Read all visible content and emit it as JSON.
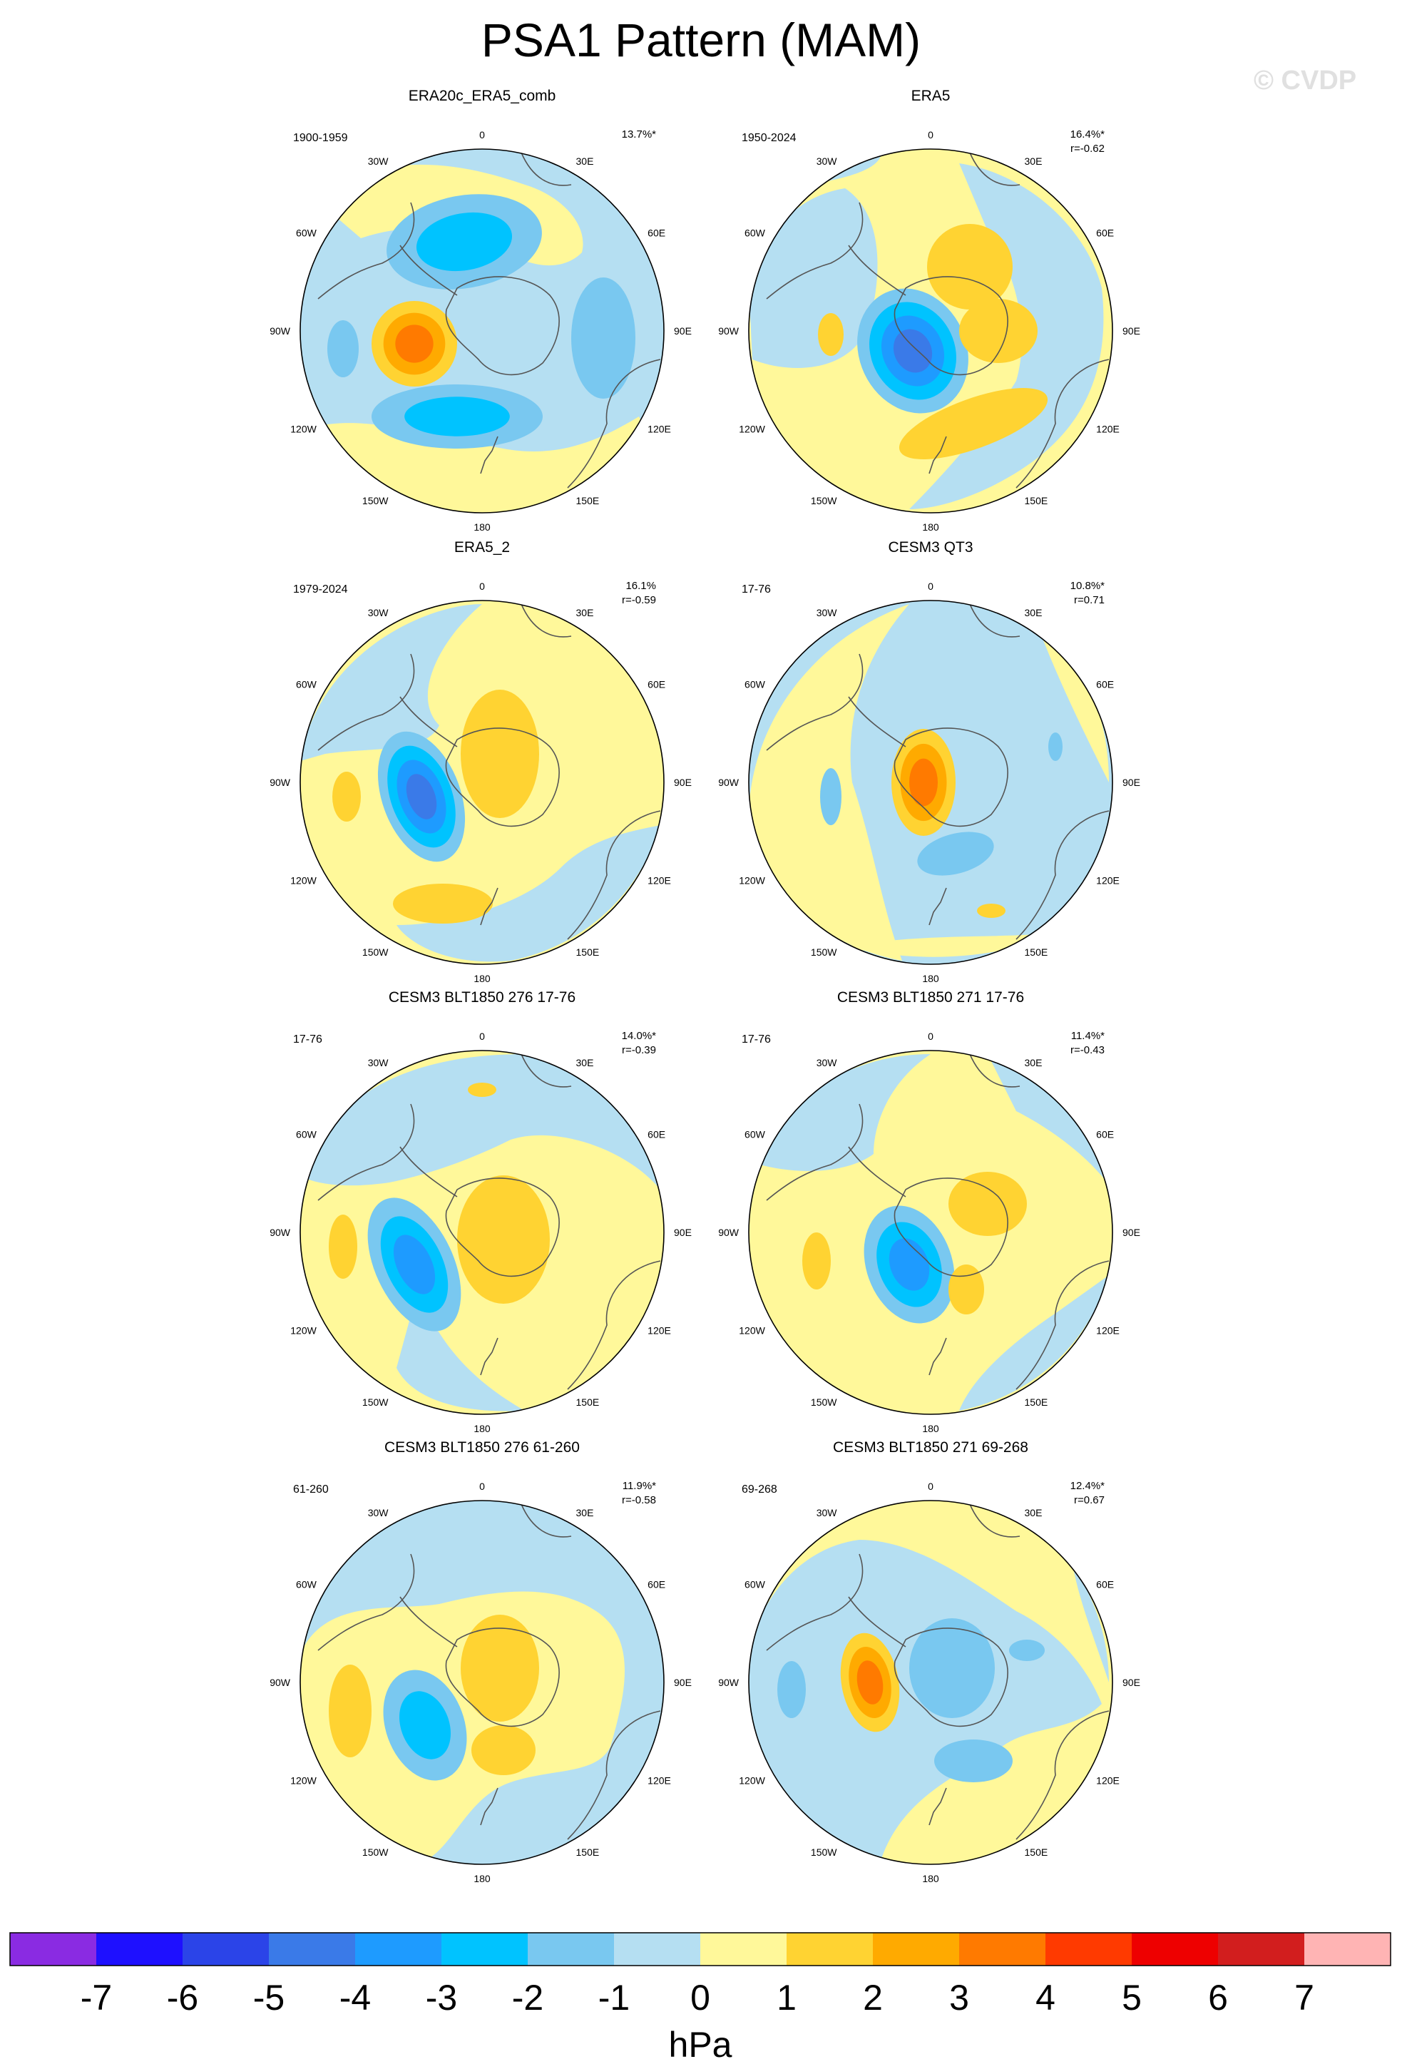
{
  "title": "PSA1 Pattern (MAM)",
  "watermark": "© CVDP",
  "units": "hPa",
  "colorbar": {
    "ticks": [
      "-7",
      "-6",
      "-5",
      "-4",
      "-3",
      "-2",
      "-1",
      "0",
      "1",
      "2",
      "3",
      "4",
      "5",
      "6",
      "7"
    ],
    "colors": [
      "#8a2be2",
      "#1e10ff",
      "#2b44e8",
      "#3a7ae8",
      "#1e9bff",
      "#00c3ff",
      "#79c8f0",
      "#b5dff2",
      "#fff89a",
      "#ffd332",
      "#ffaa00",
      "#ff7a00",
      "#ff3a00",
      "#ee0000",
      "#d21e1e",
      "#ffb4b4"
    ]
  },
  "lon_labels": [
    "0",
    "30E",
    "60E",
    "90E",
    "120E",
    "150E",
    "180",
    "150W",
    "120W",
    "90W",
    "60W",
    "30W"
  ],
  "chart_data": [
    {
      "type": "map",
      "title": "ERA20c_ERA5_comb",
      "period": "1900-1959",
      "stats": [
        "13.7%*"
      ]
    },
    {
      "type": "map",
      "title": "ERA5",
      "period": "1950-2024",
      "stats": [
        "16.4%*",
        "r=-0.62"
      ]
    },
    {
      "type": "map",
      "title": "ERA5_2",
      "period": "1979-2024",
      "stats": [
        "16.1%",
        "r=-0.59"
      ]
    },
    {
      "type": "map",
      "title": "CESM3 QT3",
      "period": "17-76",
      "stats": [
        "10.8%*",
        "r=0.71"
      ]
    },
    {
      "type": "map",
      "title": "CESM3 BLT1850 276 17-76",
      "period": "17-76",
      "stats": [
        "14.0%*",
        "r=-0.39"
      ]
    },
    {
      "type": "map",
      "title": "CESM3 BLT1850 271 17-76",
      "period": "17-76",
      "stats": [
        "11.4%*",
        "r=-0.43"
      ]
    },
    {
      "type": "map",
      "title": "CESM3 BLT1850 276 61-260",
      "period": "61-260",
      "stats": [
        "11.9%*",
        "r=-0.58"
      ]
    },
    {
      "type": "map",
      "title": "CESM3 BLT1850 271 69-268",
      "period": "69-268",
      "stats": [
        "12.4%*",
        "r=0.67"
      ]
    }
  ]
}
